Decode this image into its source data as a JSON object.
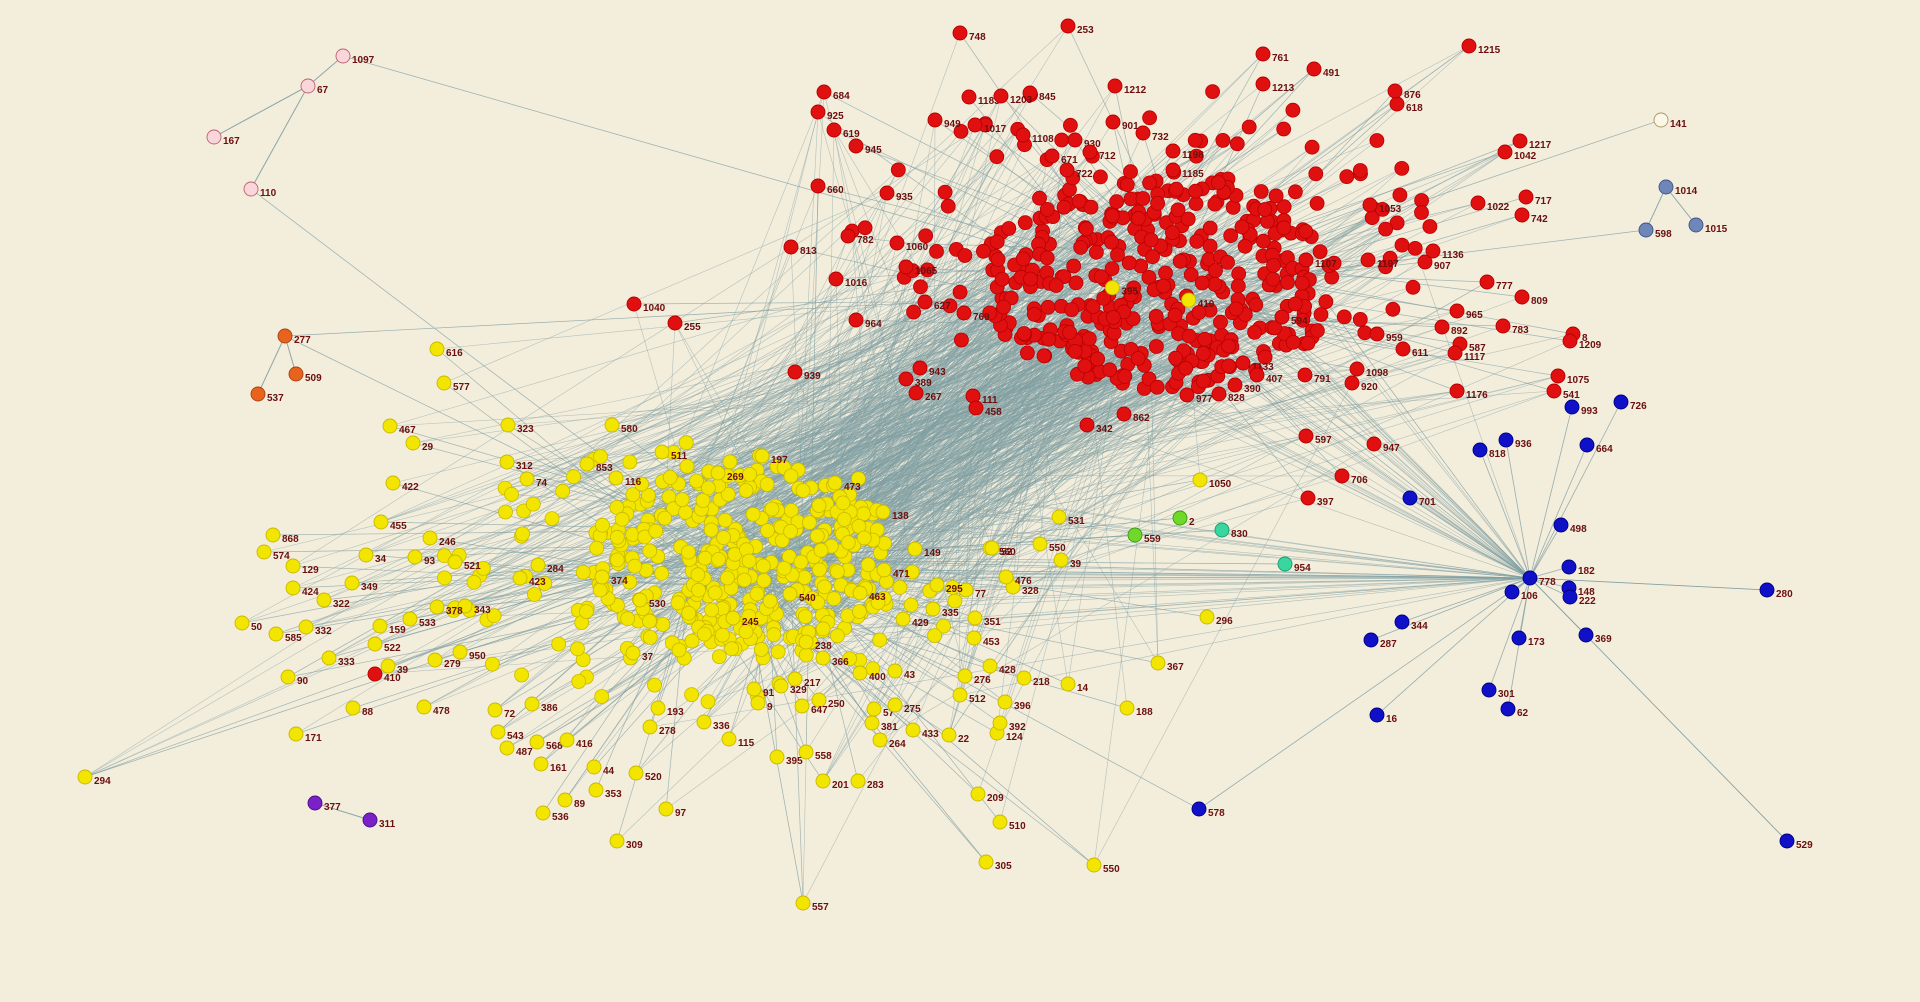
{
  "graph": {
    "colors": {
      "background": "#f3eddc",
      "edge": "#7f9ea2",
      "label": "#6b0f0f",
      "red_cluster": "#e01010",
      "yellow_cluster": "#f2e600",
      "blue_cluster": "#1010c8",
      "pink_cluster": "#f8d6da",
      "orange_cluster": "#e8641e",
      "purple_cluster": "#7a22c8",
      "slate_cluster": "#6f86b8",
      "green": "#6fd82a",
      "teal": "#3ad6a0",
      "white": "#fbf6e8"
    },
    "nodes": [
      {
        "id": "1097",
        "cluster": "pink"
      },
      {
        "id": "67",
        "cluster": "pink"
      },
      {
        "id": "167",
        "cluster": "pink"
      },
      {
        "id": "110",
        "cluster": "pink"
      },
      {
        "id": "277",
        "cluster": "orange"
      },
      {
        "id": "509",
        "cluster": "orange"
      },
      {
        "id": "537",
        "cluster": "orange"
      },
      {
        "id": "141",
        "cluster": "white"
      },
      {
        "id": "1014",
        "cluster": "slate"
      },
      {
        "id": "1015",
        "cluster": "slate"
      },
      {
        "id": "598",
        "cluster": "slate"
      },
      {
        "id": "377",
        "cluster": "purple"
      },
      {
        "id": "311",
        "cluster": "purple"
      },
      {
        "id": "559",
        "cluster": "green"
      },
      {
        "id": "2",
        "cluster": "green"
      },
      {
        "id": "830",
        "cluster": "teal"
      },
      {
        "id": "954",
        "cluster": "teal"
      },
      {
        "id": "748",
        "cluster": "red"
      },
      {
        "id": "253",
        "cluster": "red"
      },
      {
        "id": "1215",
        "cluster": "red"
      },
      {
        "id": "761",
        "cluster": "red"
      },
      {
        "id": "410",
        "cluster": "red"
      },
      {
        "id": "491",
        "cluster": "red"
      },
      {
        "id": "1213",
        "cluster": "red"
      },
      {
        "id": "618",
        "cluster": "red"
      },
      {
        "id": "845",
        "cluster": "red"
      },
      {
        "id": "1212",
        "cluster": "red"
      },
      {
        "id": "949",
        "cluster": "red"
      },
      {
        "id": "1017",
        "cluster": "red"
      },
      {
        "id": "1108",
        "cluster": "red"
      },
      {
        "id": "930",
        "cluster": "red"
      },
      {
        "id": "1198",
        "cluster": "red"
      },
      {
        "id": "619",
        "cluster": "red"
      },
      {
        "id": "945",
        "cluster": "red"
      },
      {
        "id": "660",
        "cluster": "red"
      },
      {
        "id": "935",
        "cluster": "red"
      },
      {
        "id": "1217",
        "cluster": "red"
      },
      {
        "id": "1042",
        "cluster": "red"
      },
      {
        "id": "717",
        "cluster": "red"
      },
      {
        "id": "742",
        "cluster": "red"
      },
      {
        "id": "1022",
        "cluster": "red"
      },
      {
        "id": "1185",
        "cluster": "red"
      },
      {
        "id": "1053",
        "cluster": "red"
      },
      {
        "id": "782",
        "cluster": "red"
      },
      {
        "id": "813",
        "cluster": "red"
      },
      {
        "id": "1060",
        "cluster": "red"
      },
      {
        "id": "1065",
        "cluster": "red"
      },
      {
        "id": "1016",
        "cluster": "red"
      },
      {
        "id": "1040",
        "cluster": "red"
      },
      {
        "id": "255",
        "cluster": "red"
      },
      {
        "id": "964",
        "cluster": "red"
      },
      {
        "id": "939",
        "cluster": "red"
      },
      {
        "id": "943",
        "cluster": "red"
      },
      {
        "id": "389",
        "cluster": "red"
      },
      {
        "id": "267",
        "cluster": "red"
      },
      {
        "id": "111",
        "cluster": "red"
      },
      {
        "id": "458",
        "cluster": "red"
      },
      {
        "id": "627",
        "cluster": "red"
      },
      {
        "id": "769",
        "cluster": "red"
      },
      {
        "id": "1107",
        "cluster": "red"
      },
      {
        "id": "1197",
        "cluster": "red"
      },
      {
        "id": "907",
        "cluster": "red"
      },
      {
        "id": "1136",
        "cluster": "red"
      },
      {
        "id": "777",
        "cluster": "red"
      },
      {
        "id": "809",
        "cluster": "red"
      },
      {
        "id": "965",
        "cluster": "red"
      },
      {
        "id": "892",
        "cluster": "red"
      },
      {
        "id": "783",
        "cluster": "red"
      },
      {
        "id": "587",
        "cluster": "red"
      },
      {
        "id": "8",
        "cluster": "red"
      },
      {
        "id": "1209",
        "cluster": "red"
      },
      {
        "id": "1117",
        "cluster": "red"
      },
      {
        "id": "611",
        "cluster": "red"
      },
      {
        "id": "959",
        "cluster": "red"
      },
      {
        "id": "1098",
        "cluster": "red"
      },
      {
        "id": "920",
        "cluster": "red"
      },
      {
        "id": "791",
        "cluster": "red"
      },
      {
        "id": "1075",
        "cluster": "red"
      },
      {
        "id": "541",
        "cluster": "red"
      },
      {
        "id": "1176",
        "cluster": "red"
      },
      {
        "id": "597",
        "cluster": "red"
      },
      {
        "id": "947",
        "cluster": "red"
      },
      {
        "id": "706",
        "cluster": "red"
      },
      {
        "id": "397",
        "cluster": "red"
      },
      {
        "id": "342",
        "cluster": "red"
      },
      {
        "id": "862",
        "cluster": "red"
      },
      {
        "id": "977",
        "cluster": "red"
      },
      {
        "id": "828",
        "cluster": "red"
      },
      {
        "id": "390",
        "cluster": "red"
      },
      {
        "id": "1133",
        "cluster": "red"
      },
      {
        "id": "407",
        "cluster": "red"
      },
      {
        "id": "594",
        "cluster": "red"
      },
      {
        "id": "712",
        "cluster": "red"
      },
      {
        "id": "722",
        "cluster": "red"
      },
      {
        "id": "671",
        "cluster": "red"
      },
      {
        "id": "901",
        "cluster": "red"
      },
      {
        "id": "732",
        "cluster": "red"
      },
      {
        "id": "876",
        "cluster": "red"
      },
      {
        "id": "1183",
        "cluster": "red"
      },
      {
        "id": "1203",
        "cluster": "red"
      },
      {
        "id": "684",
        "cluster": "red"
      },
      {
        "id": "925",
        "cluster": "red"
      },
      {
        "id": "616",
        "cluster": "yellow"
      },
      {
        "id": "577",
        "cluster": "yellow"
      },
      {
        "id": "467",
        "cluster": "yellow"
      },
      {
        "id": "29",
        "cluster": "yellow"
      },
      {
        "id": "323",
        "cluster": "yellow"
      },
      {
        "id": "580",
        "cluster": "yellow"
      },
      {
        "id": "312",
        "cluster": "yellow"
      },
      {
        "id": "422",
        "cluster": "yellow"
      },
      {
        "id": "74",
        "cluster": "yellow"
      },
      {
        "id": "395",
        "cluster": "yellow"
      },
      {
        "id": "116",
        "cluster": "yellow"
      },
      {
        "id": "853",
        "cluster": "yellow"
      },
      {
        "id": "511",
        "cluster": "yellow"
      },
      {
        "id": "197",
        "cluster": "yellow"
      },
      {
        "id": "269",
        "cluster": "yellow"
      },
      {
        "id": "455",
        "cluster": "yellow"
      },
      {
        "id": "868",
        "cluster": "yellow"
      },
      {
        "id": "574",
        "cluster": "yellow"
      },
      {
        "id": "129",
        "cluster": "yellow"
      },
      {
        "id": "424",
        "cluster": "yellow"
      },
      {
        "id": "322",
        "cluster": "yellow"
      },
      {
        "id": "246",
        "cluster": "yellow"
      },
      {
        "id": "34",
        "cluster": "yellow"
      },
      {
        "id": "93",
        "cluster": "yellow"
      },
      {
        "id": "349",
        "cluster": "yellow"
      },
      {
        "id": "521",
        "cluster": "yellow"
      },
      {
        "id": "423",
        "cluster": "yellow"
      },
      {
        "id": "284",
        "cluster": "yellow"
      },
      {
        "id": "374",
        "cluster": "yellow"
      },
      {
        "id": "343",
        "cluster": "yellow"
      },
      {
        "id": "533",
        "cluster": "yellow"
      },
      {
        "id": "159",
        "cluster": "yellow"
      },
      {
        "id": "378",
        "cluster": "yellow"
      },
      {
        "id": "332",
        "cluster": "yellow"
      },
      {
        "id": "585",
        "cluster": "yellow"
      },
      {
        "id": "50",
        "cluster": "yellow"
      },
      {
        "id": "522",
        "cluster": "yellow"
      },
      {
        "id": "333",
        "cluster": "yellow"
      },
      {
        "id": "39",
        "cluster": "yellow"
      },
      {
        "id": "410",
        "cluster": "yellow"
      },
      {
        "id": "279",
        "cluster": "yellow"
      },
      {
        "id": "950",
        "cluster": "yellow"
      },
      {
        "id": "90",
        "cluster": "yellow"
      },
      {
        "id": "88",
        "cluster": "yellow"
      },
      {
        "id": "171",
        "cluster": "yellow"
      },
      {
        "id": "294",
        "cluster": "yellow"
      },
      {
        "id": "478",
        "cluster": "yellow"
      },
      {
        "id": "72",
        "cluster": "yellow"
      },
      {
        "id": "386",
        "cluster": "yellow"
      },
      {
        "id": "543",
        "cluster": "yellow"
      },
      {
        "id": "568",
        "cluster": "yellow"
      },
      {
        "id": "487",
        "cluster": "yellow"
      },
      {
        "id": "416",
        "cluster": "yellow"
      },
      {
        "id": "161",
        "cluster": "yellow"
      },
      {
        "id": "44",
        "cluster": "yellow"
      },
      {
        "id": "353",
        "cluster": "yellow"
      },
      {
        "id": "89",
        "cluster": "yellow"
      },
      {
        "id": "536",
        "cluster": "yellow"
      },
      {
        "id": "97",
        "cluster": "yellow"
      },
      {
        "id": "309",
        "cluster": "yellow"
      },
      {
        "id": "520",
        "cluster": "yellow"
      },
      {
        "id": "278",
        "cluster": "yellow"
      },
      {
        "id": "193",
        "cluster": "yellow"
      },
      {
        "id": "336",
        "cluster": "yellow"
      },
      {
        "id": "115",
        "cluster": "yellow"
      },
      {
        "id": "395",
        "cluster": "yellow"
      },
      {
        "id": "558",
        "cluster": "yellow"
      },
      {
        "id": "201",
        "cluster": "yellow"
      },
      {
        "id": "283",
        "cluster": "yellow"
      },
      {
        "id": "557",
        "cluster": "yellow"
      },
      {
        "id": "9",
        "cluster": "yellow"
      },
      {
        "id": "329",
        "cluster": "yellow"
      },
      {
        "id": "217",
        "cluster": "yellow"
      },
      {
        "id": "250",
        "cluster": "yellow"
      },
      {
        "id": "647",
        "cluster": "yellow"
      },
      {
        "id": "57",
        "cluster": "yellow"
      },
      {
        "id": "381",
        "cluster": "yellow"
      },
      {
        "id": "264",
        "cluster": "yellow"
      },
      {
        "id": "275",
        "cluster": "yellow"
      },
      {
        "id": "433",
        "cluster": "yellow"
      },
      {
        "id": "22",
        "cluster": "yellow"
      },
      {
        "id": "124",
        "cluster": "yellow"
      },
      {
        "id": "392",
        "cluster": "yellow"
      },
      {
        "id": "396",
        "cluster": "yellow"
      },
      {
        "id": "512",
        "cluster": "yellow"
      },
      {
        "id": "400",
        "cluster": "yellow"
      },
      {
        "id": "43",
        "cluster": "yellow"
      },
      {
        "id": "276",
        "cluster": "yellow"
      },
      {
        "id": "428",
        "cluster": "yellow"
      },
      {
        "id": "218",
        "cluster": "yellow"
      },
      {
        "id": "14",
        "cluster": "yellow"
      },
      {
        "id": "188",
        "cluster": "yellow"
      },
      {
        "id": "209",
        "cluster": "yellow"
      },
      {
        "id": "510",
        "cluster": "yellow"
      },
      {
        "id": "305",
        "cluster": "yellow"
      },
      {
        "id": "550",
        "cluster": "yellow"
      },
      {
        "id": "367",
        "cluster": "yellow"
      },
      {
        "id": "296",
        "cluster": "yellow"
      },
      {
        "id": "453",
        "cluster": "yellow"
      },
      {
        "id": "351",
        "cluster": "yellow"
      },
      {
        "id": "335",
        "cluster": "yellow"
      },
      {
        "id": "328",
        "cluster": "yellow"
      },
      {
        "id": "476",
        "cluster": "yellow"
      },
      {
        "id": "77",
        "cluster": "yellow"
      },
      {
        "id": "39",
        "cluster": "yellow"
      },
      {
        "id": "550",
        "cluster": "yellow"
      },
      {
        "id": "531",
        "cluster": "yellow"
      },
      {
        "id": "1050",
        "cluster": "yellow"
      },
      {
        "id": "560",
        "cluster": "yellow"
      },
      {
        "id": "52",
        "cluster": "yellow"
      },
      {
        "id": "149",
        "cluster": "yellow"
      },
      {
        "id": "138",
        "cluster": "yellow"
      },
      {
        "id": "473",
        "cluster": "yellow"
      },
      {
        "id": "429",
        "cluster": "yellow"
      },
      {
        "id": "471",
        "cluster": "yellow"
      },
      {
        "id": "463",
        "cluster": "yellow"
      },
      {
        "id": "295",
        "cluster": "yellow"
      },
      {
        "id": "530",
        "cluster": "yellow"
      },
      {
        "id": "37",
        "cluster": "yellow"
      },
      {
        "id": "245",
        "cluster": "yellow"
      },
      {
        "id": "91",
        "cluster": "yellow"
      },
      {
        "id": "238",
        "cluster": "yellow"
      },
      {
        "id": "366",
        "cluster": "yellow"
      },
      {
        "id": "540",
        "cluster": "yellow"
      },
      {
        "id": "726",
        "cluster": "blue"
      },
      {
        "id": "993",
        "cluster": "blue"
      },
      {
        "id": "664",
        "cluster": "blue"
      },
      {
        "id": "818",
        "cluster": "blue"
      },
      {
        "id": "936",
        "cluster": "blue"
      },
      {
        "id": "701",
        "cluster": "blue"
      },
      {
        "id": "498",
        "cluster": "blue"
      },
      {
        "id": "778",
        "cluster": "blue"
      },
      {
        "id": "182",
        "cluster": "blue"
      },
      {
        "id": "148",
        "cluster": "blue"
      },
      {
        "id": "222",
        "cluster": "blue"
      },
      {
        "id": "106",
        "cluster": "blue"
      },
      {
        "id": "369",
        "cluster": "blue"
      },
      {
        "id": "173",
        "cluster": "blue"
      },
      {
        "id": "344",
        "cluster": "blue"
      },
      {
        "id": "287",
        "cluster": "blue"
      },
      {
        "id": "301",
        "cluster": "blue"
      },
      {
        "id": "62",
        "cluster": "blue"
      },
      {
        "id": "16",
        "cluster": "blue"
      },
      {
        "id": "578",
        "cluster": "blue"
      },
      {
        "id": "529",
        "cluster": "blue"
      },
      {
        "id": "280",
        "cluster": "blue"
      }
    ],
    "edges": [
      [
        "1097",
        "67"
      ],
      [
        "67",
        "167"
      ],
      [
        "67",
        "110"
      ],
      [
        "277",
        "509"
      ],
      [
        "277",
        "537"
      ],
      [
        "1014",
        "1015"
      ],
      [
        "1014",
        "598"
      ],
      [
        "377",
        "311"
      ]
    ]
  }
}
